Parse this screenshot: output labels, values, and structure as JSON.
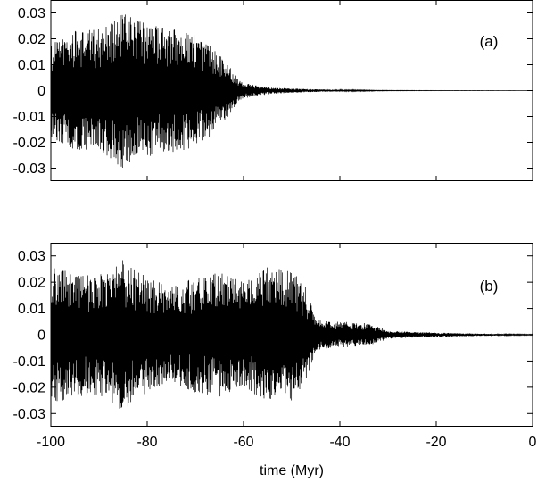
{
  "chart_data": [
    {
      "type": "line",
      "panel_label": "(a)",
      "xlim": [
        -100,
        0
      ],
      "ylim": [
        -0.035,
        0.035
      ],
      "x_ticks": [
        -100,
        -80,
        -60,
        -40,
        -20,
        0
      ],
      "y_ticks": [
        0.03,
        0.02,
        0.01,
        0,
        -0.01,
        -0.02,
        -0.03
      ],
      "y_tick_labels": [
        "0.03",
        "0.02",
        "0.01",
        "0",
        "-0.01",
        "-0.02",
        "-0.03"
      ],
      "show_x_tick_labels": false,
      "grid": false,
      "series": [
        {
          "color": "#000000",
          "x": [
            -100,
            -95,
            -90,
            -85,
            -80,
            -75,
            -70,
            -65,
            -62,
            -60,
            -57,
            -54,
            -50,
            -45,
            -40,
            -35,
            -30,
            -20,
            -10,
            0
          ],
          "amplitude": [
            0.018,
            0.023,
            0.024,
            0.03,
            0.026,
            0.024,
            0.022,
            0.015,
            0.007,
            0.003,
            0.002,
            0.0012,
            0.0008,
            0.0005,
            0.0003,
            0.0002,
            0.0001,
            5e-05,
            3e-05,
            2e-05
          ]
        }
      ]
    },
    {
      "type": "line",
      "panel_label": "(b)",
      "xlim": [
        -100,
        0
      ],
      "ylim": [
        -0.035,
        0.035
      ],
      "x_ticks": [
        -100,
        -80,
        -60,
        -40,
        -20,
        0
      ],
      "x_tick_labels": [
        "-100",
        "-80",
        "-60",
        "-40",
        "-20",
        "0"
      ],
      "y_ticks": [
        0.03,
        0.02,
        0.01,
        0,
        -0.01,
        -0.02,
        -0.03
      ],
      "y_tick_labels": [
        "0.03",
        "0.02",
        "0.01",
        "0",
        "-0.01",
        "-0.02",
        "-0.03"
      ],
      "show_x_tick_labels": true,
      "xlabel": "time (Myr)",
      "grid": false,
      "series": [
        {
          "color": "#000000",
          "x": [
            -100,
            -95,
            -90,
            -85,
            -80,
            -75,
            -70,
            -65,
            -60,
            -55,
            -50,
            -47,
            -45,
            -42,
            -40,
            -35,
            -32,
            -30,
            -25,
            -20,
            -15,
            -10,
            -5,
            0
          ],
          "amplitude": [
            0.026,
            0.024,
            0.023,
            0.029,
            0.022,
            0.018,
            0.022,
            0.024,
            0.02,
            0.026,
            0.025,
            0.018,
            0.006,
            0.005,
            0.005,
            0.0045,
            0.003,
            0.0015,
            0.0011,
            0.0008,
            0.0006,
            0.0004,
            0.00025,
            0.00015
          ]
        }
      ]
    }
  ]
}
